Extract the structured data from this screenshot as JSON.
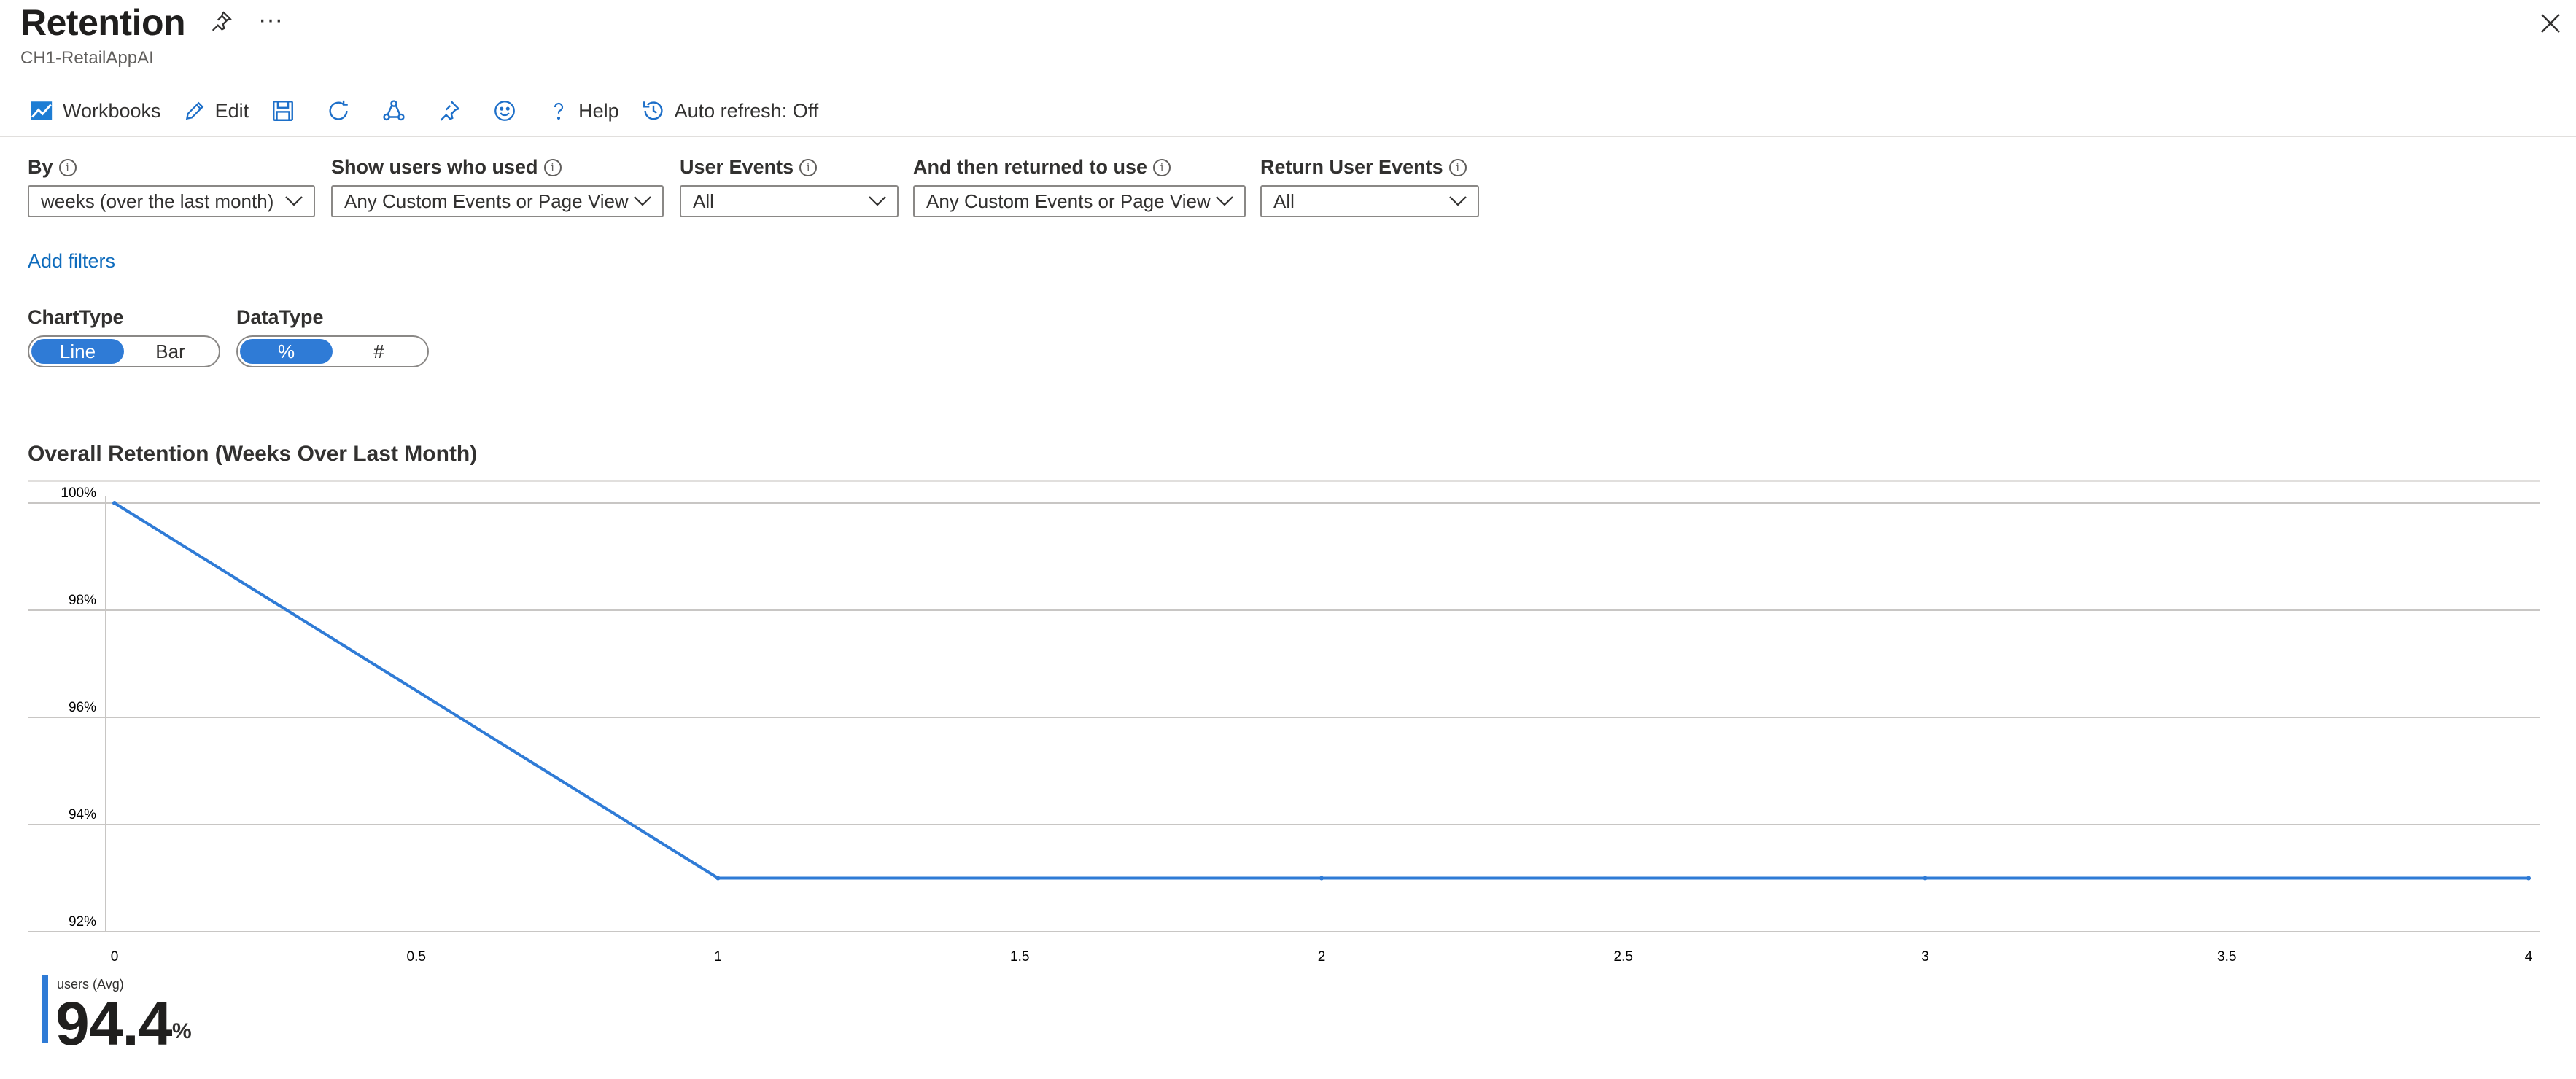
{
  "header": {
    "title": "Retention",
    "subtitle": "CH1-RetailAppAI"
  },
  "toolbar": {
    "workbooks_label": "Workbooks",
    "edit_label": "Edit",
    "help_label": "Help",
    "auto_refresh_label": "Auto refresh: Off"
  },
  "params": {
    "by": {
      "label": "By",
      "value": "weeks (over the last month)"
    },
    "show_users": {
      "label": "Show users who used",
      "value": "Any Custom Events or Page View"
    },
    "user_events": {
      "label": "User Events",
      "value": "All"
    },
    "returned": {
      "label": "And then returned to use",
      "value": "Any Custom Events or Page View"
    },
    "return_events": {
      "label": "Return User Events",
      "value": "All"
    }
  },
  "filters": {
    "add_label": "Add filters"
  },
  "chart_type": {
    "label": "ChartType",
    "options": [
      "Line",
      "Bar"
    ],
    "selected": "Line"
  },
  "data_type": {
    "label": "DataType",
    "options": [
      "%",
      "#"
    ],
    "selected": "%"
  },
  "accent_color": "#2f7bd6",
  "chart_data": {
    "type": "line",
    "title": "Overall Retention (Weeks Over Last Month)",
    "x": [
      0,
      1,
      2,
      3,
      4
    ],
    "series": [
      {
        "name": "",
        "values": [
          100,
          93,
          93,
          93,
          93
        ]
      }
    ],
    "ylim": [
      92,
      100
    ],
    "xlim": [
      0,
      4
    ],
    "yticks": [
      "100%",
      "98%",
      "96%",
      "94%",
      "92%"
    ],
    "xticks": [
      "0",
      "0.5",
      "1",
      "1.5",
      "2",
      "2.5",
      "3",
      "3.5",
      "4"
    ],
    "grid": true
  },
  "metric": {
    "name": "users (Avg)",
    "value": "94.4",
    "unit": "%"
  }
}
